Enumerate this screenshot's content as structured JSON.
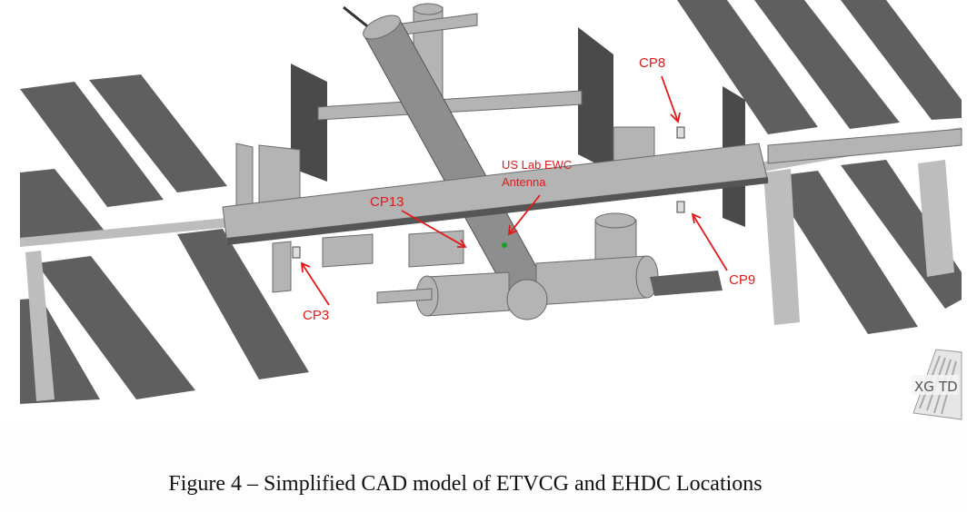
{
  "figure": {
    "callouts": {
      "cp8": "CP8",
      "cp9": "CP9",
      "cp3": "CP3",
      "cp13": "CP13",
      "us_lab_line1": "US Lab EWC",
      "us_lab_line2": "Antenna"
    },
    "logo": {
      "left": "XG",
      "right": "TD"
    },
    "colors": {
      "callout": "#e11a1a",
      "solar_panel": "#5f5f5f",
      "structure": "#b4b4b4"
    }
  },
  "caption": "Figure 4 – Simplified CAD model of ETVCG and EHDC Locations"
}
